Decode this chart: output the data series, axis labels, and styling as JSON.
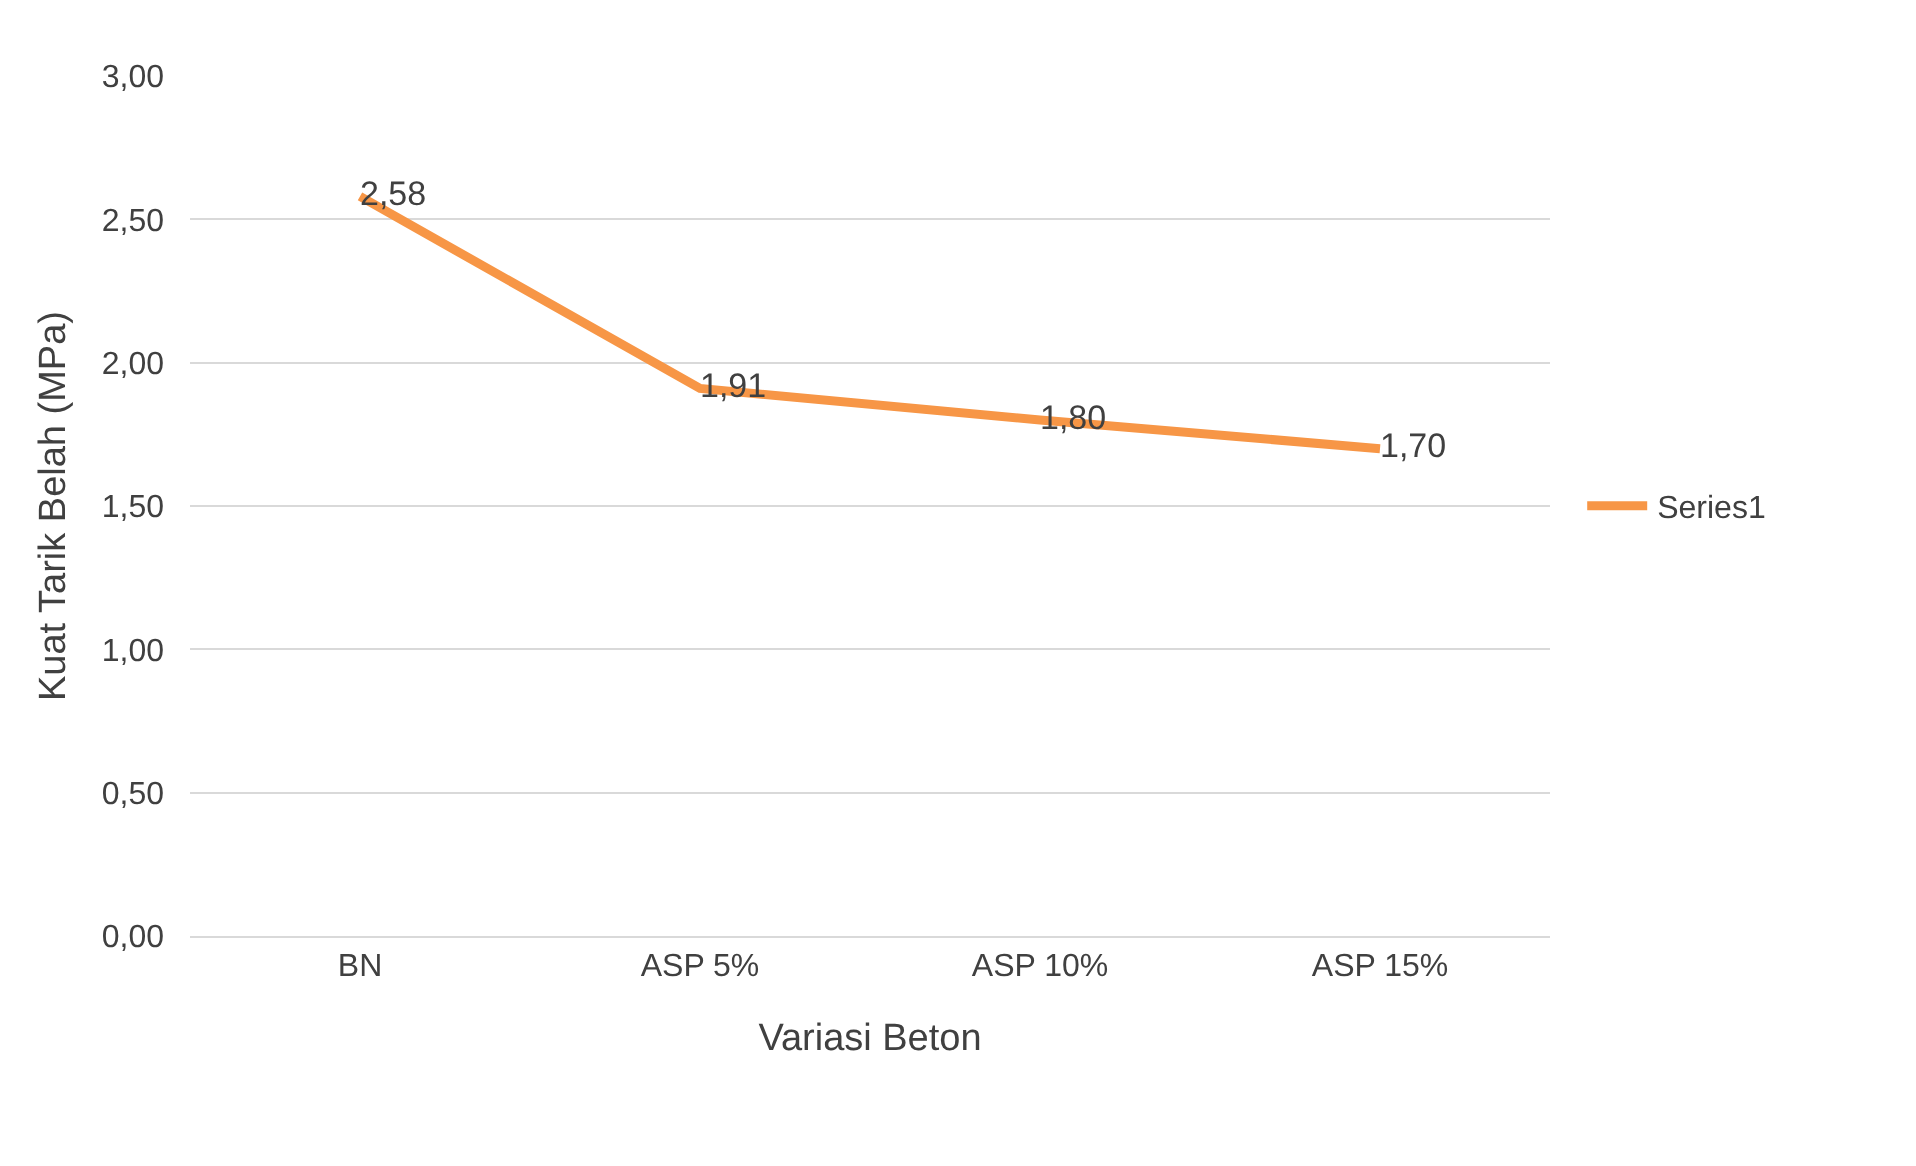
{
  "chart_data": {
    "type": "line",
    "xlabel": "Variasi Beton",
    "ylabel": "Kuat Tarik Belah (MPa)",
    "categories": [
      "BN",
      "ASP 5%",
      "ASP 10%",
      "ASP 15%"
    ],
    "series": [
      {
        "name": "Series1",
        "color": "#f79646",
        "values": [
          2.58,
          1.91,
          1.8,
          1.7
        ],
        "value_labels": [
          "2,58",
          "1,91",
          "1,80",
          "1,70"
        ]
      }
    ],
    "ylim": [
      0,
      3
    ],
    "yticks": [
      {
        "value": 0,
        "label": "0,00"
      },
      {
        "value": 0.5,
        "label": "0,50"
      },
      {
        "value": 1,
        "label": "1,00"
      },
      {
        "value": 1.5,
        "label": "1,50"
      },
      {
        "value": 2,
        "label": "2,00"
      },
      {
        "value": 2.5,
        "label": "2,50"
      },
      {
        "value": 3,
        "label": "3,00"
      }
    ],
    "grid": "y",
    "legend": "right",
    "marker": "none",
    "line_style": "solid"
  }
}
